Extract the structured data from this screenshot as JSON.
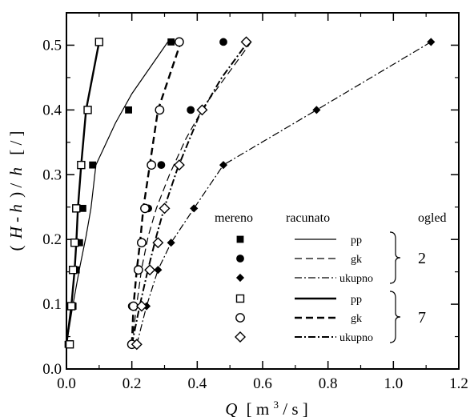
{
  "chart_data": {
    "type": "scatter",
    "x_axis": {
      "label_var": "Q",
      "label_unit_prefix": "[ m",
      "label_unit_exp": "3",
      "label_unit_suffix": " / s ]",
      "range": [
        0,
        1.2
      ],
      "ticks": [
        0.0,
        0.2,
        0.4,
        0.6,
        0.8,
        1.0,
        1.2
      ],
      "tick_labels": [
        "0.0",
        "0.2",
        "0.4",
        "0.6",
        "0.8",
        "1.0",
        "1.2"
      ]
    },
    "y_axis": {
      "label_open": "(",
      "label_H": "H",
      "label_mid": " - ",
      "label_h1": "h",
      "label_close": ") /",
      "label_h2": "h",
      "label_unit": "[ / ]",
      "range": [
        0,
        0.55
      ],
      "ticks": [
        0.0,
        0.1,
        0.2,
        0.3,
        0.4,
        0.5
      ],
      "tick_labels": [
        "0.0",
        "0.1",
        "0.2",
        "0.3",
        "0.4",
        "0.5"
      ]
    },
    "legend": {
      "header_measured": "mereno",
      "header_computed": "racunato",
      "header_case": "ogled",
      "groups": [
        {
          "case": "2",
          "entries": [
            {
              "label": "pp",
              "marker": "filled-square",
              "line": "thin-solid"
            },
            {
              "label": "gk",
              "marker": "filled-circle",
              "line": "thin-dashed"
            },
            {
              "label": "ukupno",
              "marker": "filled-diamond",
              "line": "thin-dashdot"
            }
          ]
        },
        {
          "case": "7",
          "entries": [
            {
              "label": "pp",
              "marker": "open-square",
              "line": "thick-solid"
            },
            {
              "label": "gk",
              "marker": "open-circle",
              "line": "thick-dashed"
            },
            {
              "label": "ukupno",
              "marker": "open-diamond",
              "line": "thick-dashdot"
            }
          ]
        }
      ]
    },
    "series": [
      {
        "name": "pp",
        "case": "2",
        "kind": "measured",
        "marker": "filled-square",
        "points": [
          [
            0.005,
            0.038
          ],
          [
            0.02,
            0.097
          ],
          [
            0.03,
            0.153
          ],
          [
            0.04,
            0.195
          ],
          [
            0.05,
            0.248
          ],
          [
            0.08,
            0.315
          ],
          [
            0.19,
            0.4
          ],
          [
            0.32,
            0.505
          ]
        ]
      },
      {
        "name": "gk",
        "case": "2",
        "kind": "measured",
        "marker": "filled-circle",
        "points": [
          [
            0.2,
            0.038
          ],
          [
            0.2,
            0.097
          ],
          [
            0.22,
            0.153
          ],
          [
            0.23,
            0.195
          ],
          [
            0.25,
            0.248
          ],
          [
            0.29,
            0.315
          ],
          [
            0.38,
            0.4
          ],
          [
            0.48,
            0.505
          ]
        ]
      },
      {
        "name": "ukupno",
        "case": "2",
        "kind": "measured",
        "marker": "filled-diamond",
        "points": [
          [
            0.215,
            0.038
          ],
          [
            0.245,
            0.097
          ],
          [
            0.28,
            0.153
          ],
          [
            0.32,
            0.195
          ],
          [
            0.39,
            0.248
          ],
          [
            0.48,
            0.315
          ],
          [
            0.765,
            0.4
          ],
          [
            1.115,
            0.505
          ]
        ]
      },
      {
        "name": "pp",
        "case": "7",
        "kind": "measured",
        "marker": "open-square",
        "points": [
          [
            0.01,
            0.038
          ],
          [
            0.015,
            0.097
          ],
          [
            0.02,
            0.153
          ],
          [
            0.025,
            0.195
          ],
          [
            0.03,
            0.248
          ],
          [
            0.045,
            0.315
          ],
          [
            0.065,
            0.4
          ],
          [
            0.1,
            0.505
          ]
        ]
      },
      {
        "name": "gk",
        "case": "7",
        "kind": "measured",
        "marker": "open-circle",
        "points": [
          [
            0.2,
            0.038
          ],
          [
            0.205,
            0.097
          ],
          [
            0.22,
            0.153
          ],
          [
            0.23,
            0.195
          ],
          [
            0.24,
            0.248
          ],
          [
            0.26,
            0.315
          ],
          [
            0.285,
            0.4
          ],
          [
            0.345,
            0.505
          ]
        ]
      },
      {
        "name": "ukupno",
        "case": "7",
        "kind": "measured",
        "marker": "open-diamond",
        "points": [
          [
            0.215,
            0.038
          ],
          [
            0.23,
            0.097
          ],
          [
            0.255,
            0.153
          ],
          [
            0.28,
            0.195
          ],
          [
            0.3,
            0.248
          ],
          [
            0.345,
            0.315
          ],
          [
            0.415,
            0.4
          ],
          [
            0.55,
            0.505
          ]
        ]
      },
      {
        "name": "pp",
        "case": "2",
        "kind": "computed",
        "line": "thin-solid",
        "points": [
          [
            0.0,
            0.038
          ],
          [
            0.02,
            0.1
          ],
          [
            0.04,
            0.155
          ],
          [
            0.06,
            0.205
          ],
          [
            0.075,
            0.248
          ],
          [
            0.09,
            0.315
          ],
          [
            0.15,
            0.38
          ],
          [
            0.2,
            0.425
          ],
          [
            0.31,
            0.505
          ]
        ]
      },
      {
        "name": "gk",
        "case": "2",
        "kind": "computed",
        "line": "thin-dashed",
        "points": [
          [
            0.2,
            0.038
          ],
          [
            0.215,
            0.1
          ],
          [
            0.23,
            0.155
          ],
          [
            0.25,
            0.205
          ],
          [
            0.275,
            0.248
          ],
          [
            0.315,
            0.3
          ],
          [
            0.365,
            0.355
          ],
          [
            0.42,
            0.405
          ],
          [
            0.5,
            0.46
          ],
          [
            0.565,
            0.505
          ]
        ]
      },
      {
        "name": "ukupno",
        "case": "2",
        "kind": "computed",
        "line": "thin-dashdot",
        "points": [
          [
            0.215,
            0.038
          ],
          [
            0.245,
            0.097
          ],
          [
            0.28,
            0.153
          ],
          [
            0.32,
            0.195
          ],
          [
            0.39,
            0.248
          ],
          [
            0.48,
            0.315
          ],
          [
            0.765,
            0.4
          ],
          [
            1.115,
            0.505
          ]
        ]
      },
      {
        "name": "pp",
        "case": "7",
        "kind": "computed",
        "line": "thick-solid",
        "points": [
          [
            0.0,
            0.038
          ],
          [
            0.015,
            0.097
          ],
          [
            0.025,
            0.153
          ],
          [
            0.03,
            0.195
          ],
          [
            0.035,
            0.248
          ],
          [
            0.045,
            0.315
          ],
          [
            0.06,
            0.4
          ],
          [
            0.1,
            0.505
          ]
        ]
      },
      {
        "name": "gk",
        "case": "7",
        "kind": "computed",
        "line": "thick-dashed",
        "points": [
          [
            0.2,
            0.038
          ],
          [
            0.205,
            0.097
          ],
          [
            0.215,
            0.153
          ],
          [
            0.225,
            0.195
          ],
          [
            0.235,
            0.248
          ],
          [
            0.255,
            0.315
          ],
          [
            0.28,
            0.4
          ],
          [
            0.35,
            0.505
          ]
        ]
      },
      {
        "name": "ukupno",
        "case": "7",
        "kind": "computed",
        "line": "thick-dashdot",
        "points": [
          [
            0.2,
            0.038
          ],
          [
            0.225,
            0.1
          ],
          [
            0.25,
            0.155
          ],
          [
            0.275,
            0.205
          ],
          [
            0.3,
            0.25
          ],
          [
            0.34,
            0.31
          ],
          [
            0.405,
            0.39
          ],
          [
            0.475,
            0.45
          ],
          [
            0.555,
            0.505
          ]
        ]
      }
    ]
  }
}
